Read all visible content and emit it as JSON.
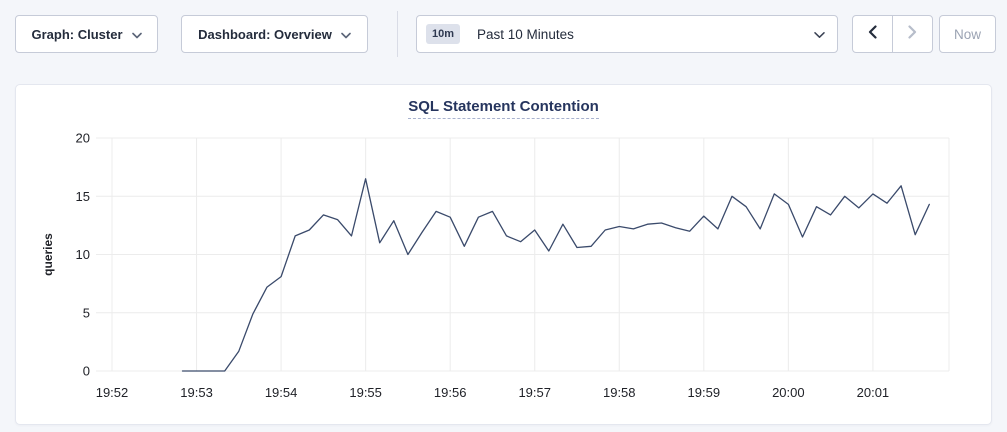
{
  "toolbar": {
    "graph_dropdown": {
      "label": "Graph: Cluster"
    },
    "dashboard_dropdown": {
      "label": "Dashboard: Overview"
    },
    "time_range": {
      "badge": "10m",
      "label": "Past 10 Minutes"
    },
    "now_button": {
      "label": "Now"
    }
  },
  "icons": {
    "graph_dropdown_caret": "chevron-down",
    "dashboard_dropdown_caret": "chevron-down",
    "time_range_caret": "chevron-down",
    "prev_button": "chevron-left",
    "next_button": "chevron-right"
  },
  "colors": {
    "page_bg": "#f4f6fa",
    "card_border": "#e4e7ef",
    "grid": "#ececec",
    "accent_line": "#3a4a6b",
    "title": "#26355e",
    "title_underline": "#a9b3cf",
    "tick_label": "#202228",
    "disabled_text": "#9ba3b3"
  },
  "chart_data": {
    "type": "line",
    "title": "SQL Statement Contention",
    "ylabel": "queries",
    "ylim": [
      0,
      20
    ],
    "yticks": [
      0,
      5,
      10,
      15,
      20
    ],
    "x_tick_labels": [
      "19:52",
      "19:53",
      "19:54",
      "19:55",
      "19:56",
      "19:57",
      "19:58",
      "19:59",
      "20:00",
      "20:01"
    ],
    "x_axis": {
      "start": "19:52:00",
      "end": "20:01:54",
      "grid": true
    },
    "series": [
      {
        "name": "queries",
        "color": "#3a4a6b",
        "points": [
          {
            "time": "19:52:50",
            "value": 0
          },
          {
            "time": "19:53:00",
            "value": 0
          },
          {
            "time": "19:53:10",
            "value": 0
          },
          {
            "time": "19:53:20",
            "value": 0
          },
          {
            "time": "19:53:30",
            "value": 1.7
          },
          {
            "time": "19:53:40",
            "value": 4.9
          },
          {
            "time": "19:53:50",
            "value": 7.2
          },
          {
            "time": "19:54:00",
            "value": 8.1
          },
          {
            "time": "19:54:10",
            "value": 11.6
          },
          {
            "time": "19:54:20",
            "value": 12.1
          },
          {
            "time": "19:54:30",
            "value": 13.4
          },
          {
            "time": "19:54:40",
            "value": 13.0
          },
          {
            "time": "19:54:50",
            "value": 11.6
          },
          {
            "time": "19:55:00",
            "value": 16.5
          },
          {
            "time": "19:55:10",
            "value": 11.0
          },
          {
            "time": "19:55:20",
            "value": 12.9
          },
          {
            "time": "19:55:30",
            "value": 10.0
          },
          {
            "time": "19:55:40",
            "value": 11.9
          },
          {
            "time": "19:55:50",
            "value": 13.7
          },
          {
            "time": "19:56:00",
            "value": 13.2
          },
          {
            "time": "19:56:10",
            "value": 10.7
          },
          {
            "time": "19:56:20",
            "value": 13.2
          },
          {
            "time": "19:56:30",
            "value": 13.7
          },
          {
            "time": "19:56:40",
            "value": 11.6
          },
          {
            "time": "19:56:50",
            "value": 11.1
          },
          {
            "time": "19:57:00",
            "value": 12.1
          },
          {
            "time": "19:57:10",
            "value": 10.3
          },
          {
            "time": "19:57:20",
            "value": 12.6
          },
          {
            "time": "19:57:30",
            "value": 10.6
          },
          {
            "time": "19:57:40",
            "value": 10.7
          },
          {
            "time": "19:57:50",
            "value": 12.1
          },
          {
            "time": "19:58:00",
            "value": 12.4
          },
          {
            "time": "19:58:10",
            "value": 12.2
          },
          {
            "time": "19:58:20",
            "value": 12.6
          },
          {
            "time": "19:58:30",
            "value": 12.7
          },
          {
            "time": "19:58:40",
            "value": 12.3
          },
          {
            "time": "19:58:50",
            "value": 12.0
          },
          {
            "time": "19:59:00",
            "value": 13.3
          },
          {
            "time": "19:59:10",
            "value": 12.2
          },
          {
            "time": "19:59:20",
            "value": 15.0
          },
          {
            "time": "19:59:30",
            "value": 14.1
          },
          {
            "time": "19:59:40",
            "value": 12.2
          },
          {
            "time": "19:59:50",
            "value": 15.2
          },
          {
            "time": "20:00:00",
            "value": 14.3
          },
          {
            "time": "20:00:10",
            "value": 11.5
          },
          {
            "time": "20:00:20",
            "value": 14.1
          },
          {
            "time": "20:00:30",
            "value": 13.4
          },
          {
            "time": "20:00:40",
            "value": 15.0
          },
          {
            "time": "20:00:50",
            "value": 14.0
          },
          {
            "time": "20:01:00",
            "value": 15.2
          },
          {
            "time": "20:01:10",
            "value": 14.4
          },
          {
            "time": "20:01:20",
            "value": 15.9
          },
          {
            "time": "20:01:30",
            "value": 11.7
          },
          {
            "time": "20:01:40",
            "value": 14.3
          }
        ]
      }
    ]
  }
}
